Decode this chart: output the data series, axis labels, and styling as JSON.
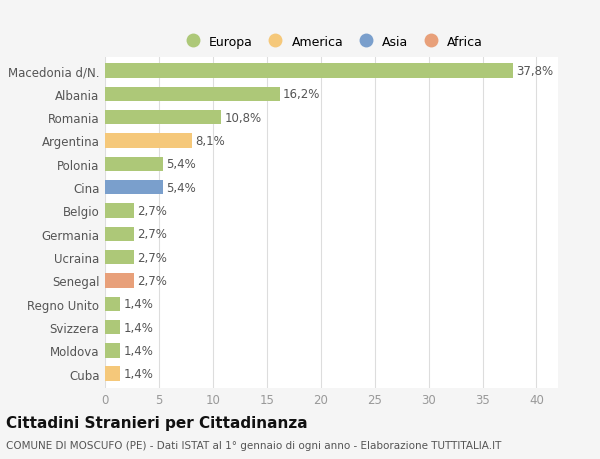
{
  "categories": [
    "Cuba",
    "Moldova",
    "Svizzera",
    "Regno Unito",
    "Senegal",
    "Ucraina",
    "Germania",
    "Belgio",
    "Cina",
    "Polonia",
    "Argentina",
    "Romania",
    "Albania",
    "Macedonia d/N."
  ],
  "values": [
    1.4,
    1.4,
    1.4,
    1.4,
    2.7,
    2.7,
    2.7,
    2.7,
    5.4,
    5.4,
    8.1,
    10.8,
    16.2,
    37.8
  ],
  "labels": [
    "1,4%",
    "1,4%",
    "1,4%",
    "1,4%",
    "2,7%",
    "2,7%",
    "2,7%",
    "2,7%",
    "5,4%",
    "5,4%",
    "8,1%",
    "10,8%",
    "16,2%",
    "37,8%"
  ],
  "colors": [
    "#f5c87a",
    "#adc878",
    "#adc878",
    "#adc878",
    "#e8a07a",
    "#adc878",
    "#adc878",
    "#adc878",
    "#7a9fcc",
    "#adc878",
    "#f5c87a",
    "#adc878",
    "#adc878",
    "#adc878"
  ],
  "legend_labels": [
    "Europa",
    "America",
    "Asia",
    "Africa"
  ],
  "legend_colors": [
    "#adc878",
    "#f5c87a",
    "#7a9fcc",
    "#e8a07a"
  ],
  "title": "Cittadini Stranieri per Cittadinanza",
  "subtitle": "COMUNE DI MOSCUFO (PE) - Dati ISTAT al 1° gennaio di ogni anno - Elaborazione TUTTITALIA.IT",
  "xlim": [
    0,
    42
  ],
  "xticks": [
    0,
    5,
    10,
    15,
    20,
    25,
    30,
    35,
    40
  ],
  "background_color": "#f5f5f5",
  "bar_background": "#ffffff",
  "label_fontsize": 8.5,
  "tick_fontsize": 8.5,
  "title_fontsize": 11,
  "subtitle_fontsize": 7.5
}
